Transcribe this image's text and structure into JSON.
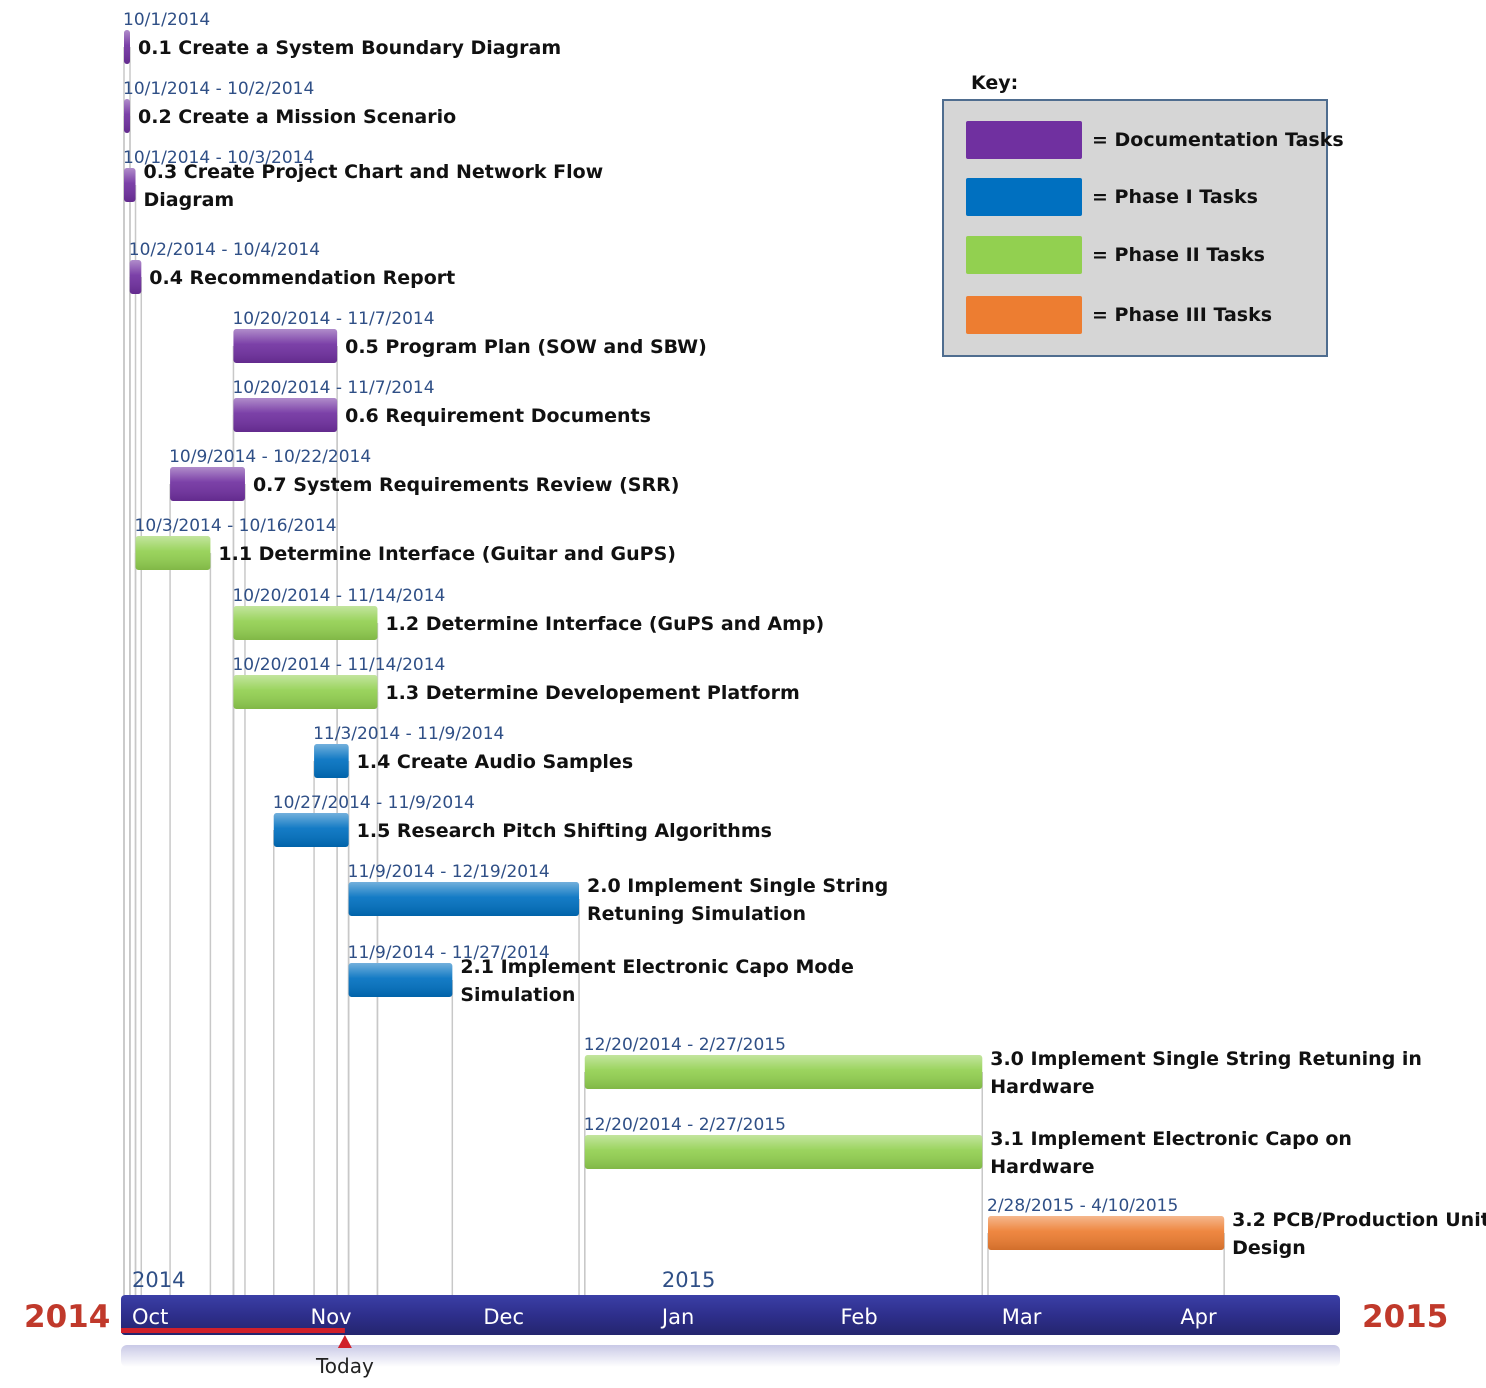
{
  "legend": {
    "title": "Key:",
    "items": [
      {
        "label": "= Documentation Tasks",
        "color": "#7030a0"
      },
      {
        "label": "= Phase I Tasks",
        "color": "#0070c0"
      },
      {
        "label": "= Phase II Tasks",
        "color": "#92d050"
      },
      {
        "label": "= Phase III Tasks",
        "color": "#ed7d31"
      }
    ]
  },
  "chart_data": {
    "type": "gantt",
    "start_year_label": "2014",
    "end_year_label": "2015",
    "year_markers": [
      {
        "label": "2014",
        "date": "2014-10-01"
      },
      {
        "label": "2015",
        "date": "2015-01-01"
      }
    ],
    "months": [
      {
        "label": "Oct",
        "date": "2014-10-01"
      },
      {
        "label": "Nov",
        "date": "2014-11-01"
      },
      {
        "label": "Dec",
        "date": "2014-12-01"
      },
      {
        "label": "Jan",
        "date": "2015-01-01"
      },
      {
        "label": "Feb",
        "date": "2015-02-01"
      },
      {
        "label": "Mar",
        "date": "2015-03-01"
      },
      {
        "label": "Apr",
        "date": "2015-04-01"
      }
    ],
    "today": {
      "label": "Today",
      "date": "2014-11-08"
    },
    "tasks": [
      {
        "name": [
          "0.1 Create a System Boundary Diagram"
        ],
        "dates": "10/1/2014",
        "start": "2014-10-01",
        "end": "2014-10-01",
        "phase": "doc"
      },
      {
        "name": [
          "0.2 Create a Mission Scenario"
        ],
        "dates": "10/1/2014 - 10/2/2014",
        "start": "2014-10-01",
        "end": "2014-10-02",
        "phase": "doc"
      },
      {
        "name": [
          "0.3 Create Project Chart and Network Flow",
          "Diagram"
        ],
        "dates": "10/1/2014 - 10/3/2014",
        "start": "2014-10-01",
        "end": "2014-10-03",
        "phase": "doc"
      },
      {
        "name": [
          "0.4 Recommendation Report"
        ],
        "dates": "10/2/2014 - 10/4/2014",
        "start": "2014-10-02",
        "end": "2014-10-04",
        "phase": "doc"
      },
      {
        "name": [
          "0.5 Program Plan (SOW and SBW)"
        ],
        "dates": "10/20/2014 - 11/7/2014",
        "start": "2014-10-20",
        "end": "2014-11-07",
        "phase": "doc"
      },
      {
        "name": [
          "0.6 Requirement Documents"
        ],
        "dates": "10/20/2014 - 11/7/2014",
        "start": "2014-10-20",
        "end": "2014-11-07",
        "phase": "doc"
      },
      {
        "name": [
          "0.7 System Requirements Review (SRR)"
        ],
        "dates": "10/9/2014 - 10/22/2014",
        "start": "2014-10-09",
        "end": "2014-10-22",
        "phase": "doc"
      },
      {
        "name": [
          "1.1 Determine Interface (Guitar and GuPS)"
        ],
        "dates": "10/3/2014 - 10/16/2014",
        "start": "2014-10-03",
        "end": "2014-10-16",
        "phase": "p2"
      },
      {
        "name": [
          "1.2 Determine Interface (GuPS and Amp)"
        ],
        "dates": "10/20/2014 - 11/14/2014",
        "start": "2014-10-20",
        "end": "2014-11-14",
        "phase": "p2"
      },
      {
        "name": [
          "1.3 Determine Developement Platform"
        ],
        "dates": "10/20/2014 - 11/14/2014",
        "start": "2014-10-20",
        "end": "2014-11-14",
        "phase": "p2"
      },
      {
        "name": [
          "1.4 Create Audio Samples"
        ],
        "dates": "11/3/2014 - 11/9/2014",
        "start": "2014-11-03",
        "end": "2014-11-09",
        "phase": "p1"
      },
      {
        "name": [
          "1.5 Research Pitch Shifting Algorithms"
        ],
        "dates": "10/27/2014 - 11/9/2014",
        "start": "2014-10-27",
        "end": "2014-11-09",
        "phase": "p1"
      },
      {
        "name": [
          "2.0 Implement Single String",
          "Retuning Simulation"
        ],
        "dates": "11/9/2014 - 12/19/2014",
        "start": "2014-11-09",
        "end": "2014-12-19",
        "phase": "p1"
      },
      {
        "name": [
          "2.1 Implement Electronic Capo Mode",
          "Simulation"
        ],
        "dates": "11/9/2014 - 11/27/2014",
        "start": "2014-11-09",
        "end": "2014-11-27",
        "phase": "p1"
      },
      {
        "name": [
          "3.0 Implement Single String Retuning in",
          "Hardware"
        ],
        "dates": "12/20/2014 - 2/27/2015",
        "start": "2014-12-20",
        "end": "2015-02-27",
        "phase": "p2"
      },
      {
        "name": [
          "3.1 Implement Electronic Capo on",
          "Hardware"
        ],
        "dates": "12/20/2014 - 2/27/2015",
        "start": "2014-12-20",
        "end": "2015-02-27",
        "phase": "p2"
      },
      {
        "name": [
          "3.2 PCB/Production Unit",
          "Design"
        ],
        "dates": "2/28/2015 - 4/10/2015",
        "start": "2015-02-28",
        "end": "2015-04-10",
        "phase": "p3"
      }
    ],
    "phase_colors": {
      "doc": "#7030a0",
      "p1": "#0070c0",
      "p2": "#92d050",
      "p3": "#ed7d31"
    }
  }
}
